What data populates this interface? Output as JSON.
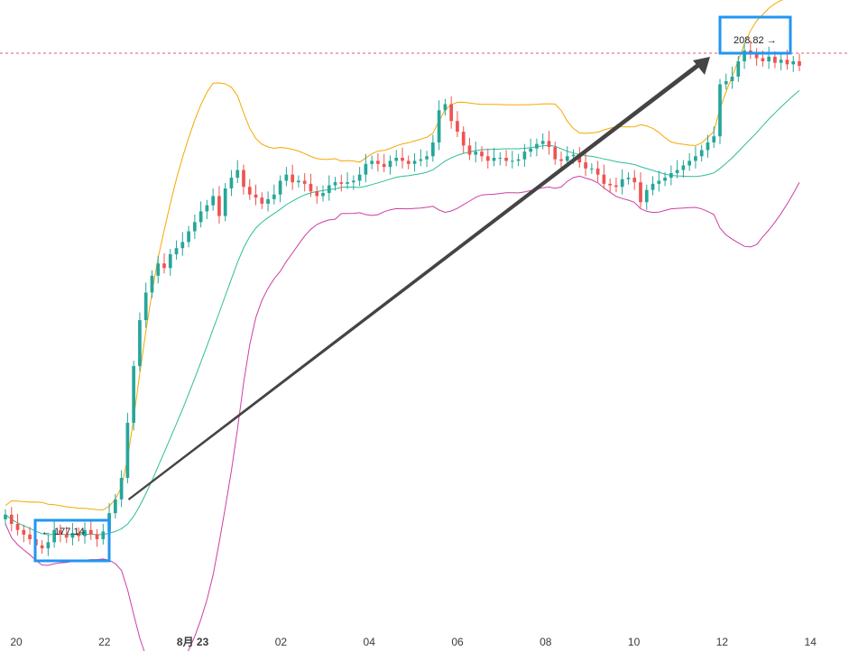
{
  "chart_data": {
    "type": "candlestick",
    "x_ticks": [
      "20",
      "22",
      "8月 23",
      "02",
      "04",
      "06",
      "08",
      "10",
      "12",
      "14"
    ],
    "reference_line": {
      "value": 208.82,
      "style": "dashed",
      "color": "#e05b6e"
    },
    "annotations": {
      "low_label": "← 177.14",
      "high_label": "208.82 →",
      "low_value": 177.14,
      "high_value": 208.82
    },
    "indicator": "bollinger-bands",
    "colors": {
      "up": "#26a69a",
      "down": "#ef5350",
      "upper_band": "#f5a800",
      "middle_band": "#2ebd9a",
      "lower_band": "#cc3fa3",
      "box": "#2196f3",
      "arrow": "#444444"
    },
    "grid": false,
    "y_axis_visible": false,
    "closes": [
      178.9,
      178.3,
      177.9,
      177.6,
      177.3,
      176.9,
      176.7,
      177.1,
      177.9,
      177.6,
      177.4,
      177.7,
      177.5,
      177.9,
      177.6,
      177.3,
      177.8,
      179.0,
      179.9,
      181.3,
      184.9,
      188.6,
      191.6,
      193.4,
      194.5,
      195.3,
      195.0,
      195.9,
      196.3,
      196.7,
      197.4,
      198.0,
      198.7,
      199.1,
      199.7,
      198.4,
      200.2,
      200.9,
      201.4,
      200.3,
      199.8,
      199.6,
      199.2,
      199.5,
      199.8,
      200.7,
      201.1,
      200.6,
      200.7,
      200.5,
      200.0,
      199.7,
      199.9,
      200.4,
      200.6,
      200.5,
      200.6,
      200.7,
      201.1,
      201.8,
      202.0,
      201.8,
      201.6,
      202.0,
      202.2,
      202.0,
      201.8,
      202.0,
      202.1,
      202.3,
      203.2,
      205.3,
      205.7,
      204.6,
      203.9,
      203.0,
      202.4,
      202.6,
      202.3,
      202.0,
      202.2,
      202.2,
      202.0,
      202.0,
      202.1,
      202.6,
      202.8,
      203.1,
      203.3,
      202.9,
      202.1,
      202.0,
      202.3,
      202.4,
      201.9,
      201.5,
      201.5,
      201.1,
      200.5,
      200.4,
      200.3,
      200.8,
      200.9,
      200.6,
      199.3,
      200.1,
      200.5,
      200.7,
      200.9,
      201.2,
      201.4,
      201.7,
      202.0,
      202.3,
      202.7,
      203.2,
      203.6,
      207.0,
      207.2,
      207.5,
      208.5,
      209.2,
      209.0,
      208.7,
      208.5,
      208.8,
      208.4,
      208.6,
      208.3,
      208.5,
      208.2
    ],
    "high_value_shown": "208.82",
    "low_value_shown": "177.14"
  }
}
